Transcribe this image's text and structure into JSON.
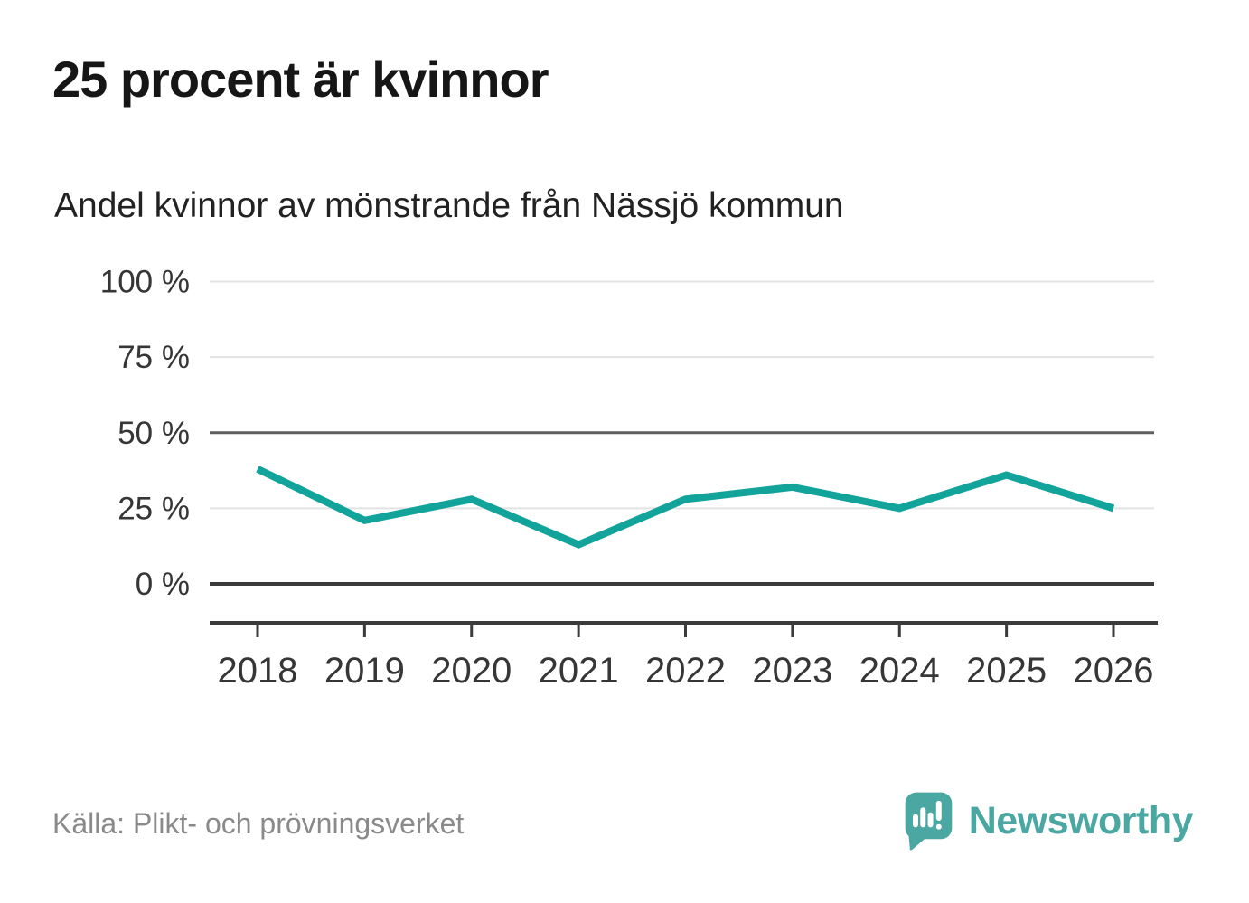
{
  "header": {
    "title": "25 procent är kvinnor",
    "subtitle": "Andel kvinnor av mönstrande från Nässjö kommun"
  },
  "footer": {
    "source": "Källa: Plikt- och prövningsverket",
    "brand_name": "Newsworthy"
  },
  "colors": {
    "line": "#12a39a",
    "brand": "#4ba7a1",
    "grid_light": "#e3e3e3",
    "grid_mid": "#5e5e5e",
    "grid_dark": "#3b3b3b",
    "tick_text": "#363636",
    "muted_text": "#8a8a8a"
  },
  "chart_data": {
    "type": "line",
    "title": "Andel kvinnor av mönstrande från Nässjö kommun",
    "x": [
      "2018",
      "2019",
      "2020",
      "2021",
      "2022",
      "2023",
      "2024",
      "2025",
      "2026"
    ],
    "series": [
      {
        "name": "Andel kvinnor (%)",
        "values": [
          38,
          21,
          28,
          13,
          28,
          32,
          25,
          36,
          25
        ]
      }
    ],
    "ylim": [
      0,
      100
    ],
    "yticks": [
      0,
      25,
      50,
      75,
      100
    ],
    "ytick_suffix": " %",
    "xlabel": "",
    "ylabel": "",
    "grid": "horizontal",
    "legend": "none",
    "emphasized_gridlines": [
      0,
      50
    ]
  }
}
